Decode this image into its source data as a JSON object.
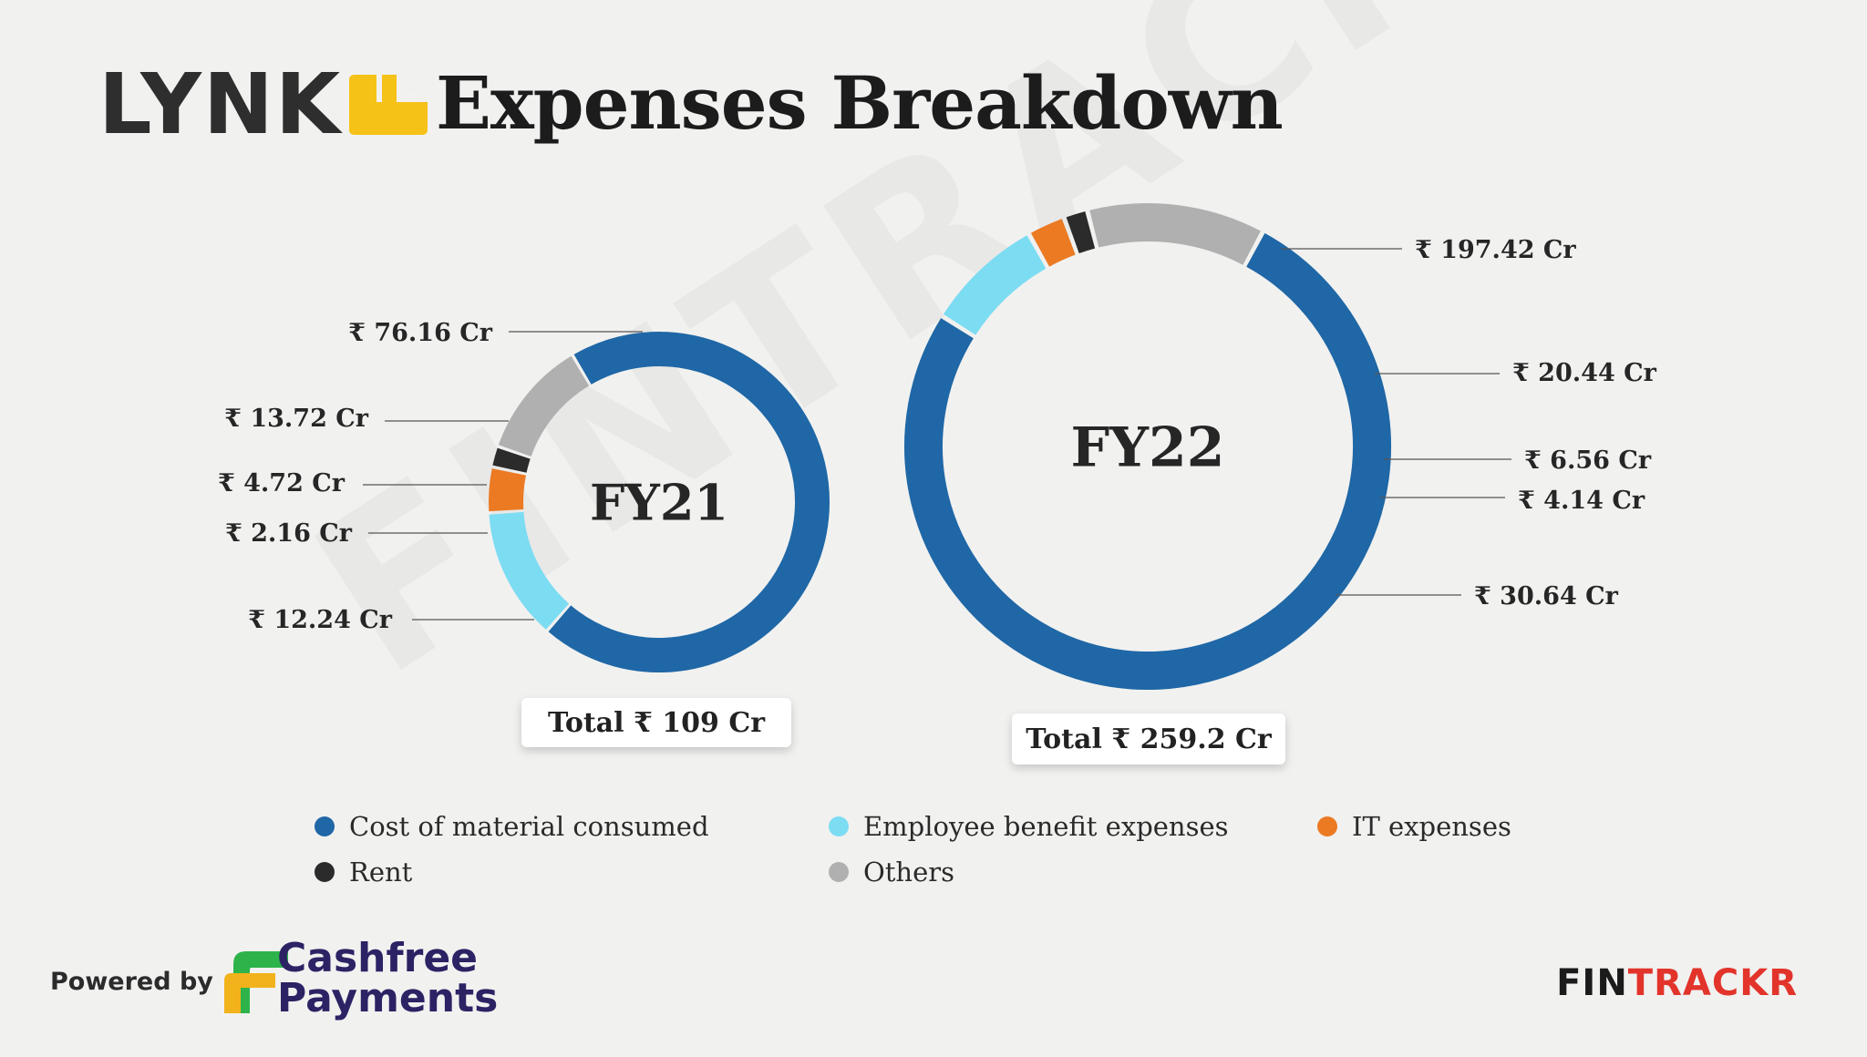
{
  "brand": {
    "logo_text": "LYNK",
    "logo_color": "#f5c218"
  },
  "title": "Expenses Breakdown",
  "watermark": "FINTRACKR",
  "chart_data": [
    {
      "type": "pie",
      "name": "FY21",
      "center_label": "FY21",
      "total_label": "Total ₹ 109 Cr",
      "categories": [
        "Cost of material consumed",
        "Employee benefit expenses",
        "IT expenses",
        "Rent",
        "Others"
      ],
      "values": [
        76.16,
        13.72,
        4.72,
        2.16,
        12.24
      ],
      "labels": [
        "₹ 76.16 Cr",
        "₹ 13.72 Cr",
        "₹ 4.72 Cr",
        "₹ 2.16 Cr",
        "₹ 12.24 Cr"
      ],
      "unit": "₹ Cr"
    },
    {
      "type": "pie",
      "name": "FY22",
      "center_label": "FY22",
      "total_label": "Total ₹ 259.2 Cr",
      "categories": [
        "Cost of material consumed",
        "Employee benefit expenses",
        "IT expenses",
        "Rent",
        "Others"
      ],
      "values": [
        197.42,
        20.44,
        6.56,
        4.14,
        30.64
      ],
      "labels": [
        "₹ 197.42 Cr",
        "₹ 20.44 Cr",
        "₹ 6.56 Cr",
        "₹ 4.14 Cr",
        "₹ 30.64 Cr"
      ],
      "unit": "₹ Cr"
    }
  ],
  "legend": [
    {
      "label": "Cost of material consumed",
      "color": "#1f67a6"
    },
    {
      "label": "Employee benefit expenses",
      "color": "#7cdcf2"
    },
    {
      "label": "IT expenses",
      "color": "#eb7a23"
    },
    {
      "label": "Rent",
      "color": "#2b2b2b"
    },
    {
      "label": "Others",
      "color": "#b0b0b0"
    }
  ],
  "footer": {
    "powered_by": "Powered by",
    "partner_line1": "Cashfree",
    "partner_line2": "Payments",
    "partner_colors": [
      "#2eb34a",
      "#f2b21b"
    ],
    "source_prefix": "FIN",
    "source_accent": "TRACKR",
    "source_accent_color": "#e2342b"
  }
}
